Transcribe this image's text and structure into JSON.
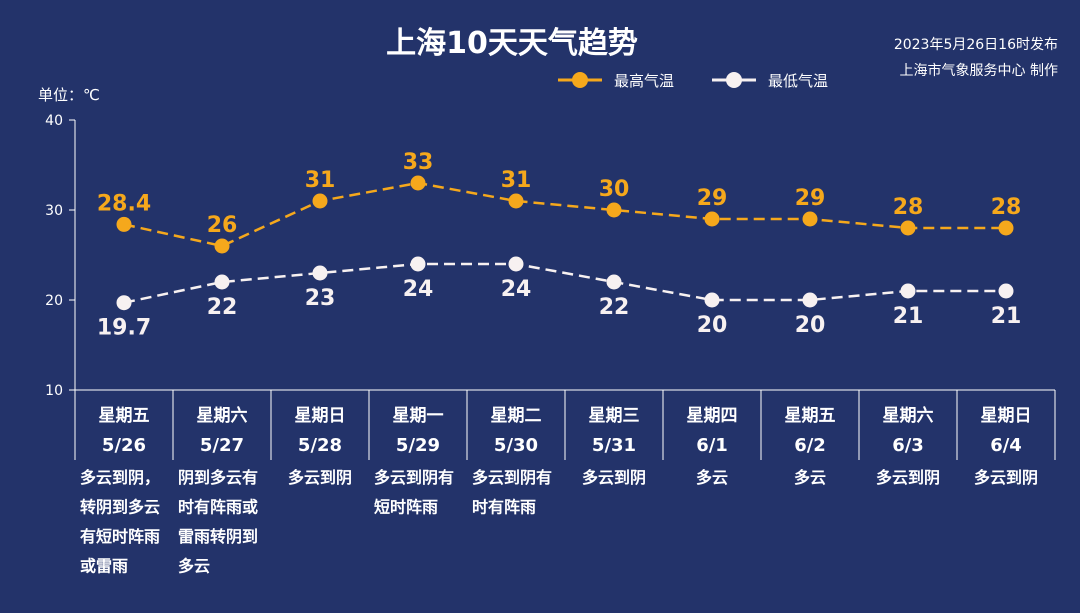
{
  "title": "上海10天天气趋势",
  "issued": {
    "line1": "2023年5月26日16时发布",
    "line2": "上海市气象服务中心 制作"
  },
  "unit_label": "单位：℃",
  "colors": {
    "background": "#23336a",
    "high": "#f5a81c",
    "low": "#f7f1f1",
    "axis": "#ffffff"
  },
  "chart_data": {
    "type": "line",
    "ylim": [
      10,
      40
    ],
    "yticks": [
      "10",
      "20",
      "30",
      "40"
    ],
    "categories": [
      {
        "day": "星期五",
        "date": "5/26",
        "weather": [
          "多云到阴，",
          "转阴到多云",
          "有短时阵雨",
          "或雷雨"
        ]
      },
      {
        "day": "星期六",
        "date": "5/27",
        "weather": [
          "阴到多云有",
          "时有阵雨或",
          "雷雨转阴到",
          "多云"
        ]
      },
      {
        "day": "星期日",
        "date": "5/28",
        "weather": [
          "多云到阴"
        ]
      },
      {
        "day": "星期一",
        "date": "5/29",
        "weather": [
          "多云到阴有",
          "短时阵雨"
        ]
      },
      {
        "day": "星期二",
        "date": "5/30",
        "weather": [
          "多云到阴有",
          "时有阵雨"
        ]
      },
      {
        "day": "星期三",
        "date": "5/31",
        "weather": [
          "多云到阴"
        ]
      },
      {
        "day": "星期四",
        "date": "6/1",
        "weather": [
          "多云"
        ]
      },
      {
        "day": "星期五",
        "date": "6/2",
        "weather": [
          "多云"
        ]
      },
      {
        "day": "星期六",
        "date": "6/3",
        "weather": [
          "多云到阴"
        ]
      },
      {
        "day": "星期日",
        "date": "6/4",
        "weather": [
          "多云到阴"
        ]
      }
    ],
    "series": [
      {
        "name": "最高气温",
        "values": [
          28.4,
          26,
          31,
          33,
          31,
          30,
          29,
          29,
          28,
          28
        ],
        "labels": [
          "28.4",
          "26",
          "31",
          "33",
          "31",
          "30",
          "29",
          "29",
          "28",
          "28"
        ]
      },
      {
        "name": "最低气温",
        "values": [
          19.7,
          22,
          23,
          24,
          24,
          22,
          20,
          20,
          21,
          21
        ],
        "labels": [
          "19.7",
          "22",
          "23",
          "24",
          "24",
          "22",
          "20",
          "20",
          "21",
          "21"
        ]
      }
    ],
    "legend_position": "top-right",
    "grid": false
  }
}
